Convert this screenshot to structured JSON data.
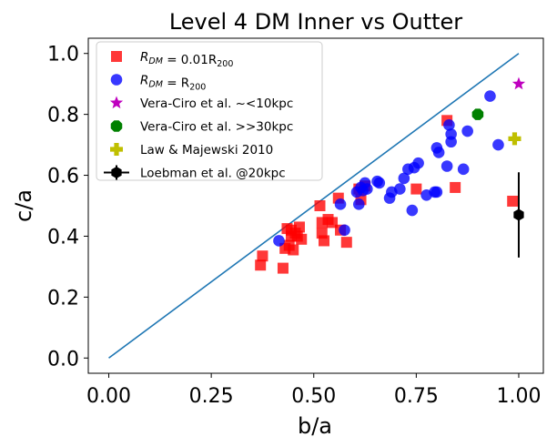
{
  "chart_data": {
    "type": "scatter",
    "title": "Level 4 DM Inner vs Outter",
    "xlabel": "b/a",
    "ylabel": "c/a",
    "xlim": [
      -0.05,
      1.06
    ],
    "ylim": [
      -0.05,
      1.05
    ],
    "xticks": [
      0.0,
      0.25,
      0.5,
      0.75,
      1.0
    ],
    "xtick_labels": [
      "0.00",
      "0.25",
      "0.50",
      "0.75",
      "1.00"
    ],
    "yticks": [
      0.0,
      0.2,
      0.4,
      0.6,
      0.8,
      1.0
    ],
    "ytick_labels": [
      "0.0",
      "0.2",
      "0.4",
      "0.6",
      "0.8",
      "1.0"
    ],
    "grid": false,
    "legend_position": "upper-left",
    "reference_line": {
      "x": [
        0.0,
        1.0
      ],
      "y": [
        0.0,
        1.0
      ],
      "color": "#1f77b4"
    },
    "series": [
      {
        "name": "R_DM = 0.01R_200",
        "legend_main": "R",
        "legend_sub1": "DM",
        "legend_mid": " = 0.01R",
        "legend_sub2": "200",
        "marker": "square",
        "color": "#ff0000",
        "x": [
          0.37,
          0.375,
          0.425,
          0.43,
          0.435,
          0.44,
          0.445,
          0.45,
          0.455,
          0.46,
          0.47,
          0.465,
          0.445,
          0.515,
          0.52,
          0.52,
          0.525,
          0.535,
          0.545,
          0.56,
          0.565,
          0.58,
          0.61,
          0.615,
          0.625,
          0.75,
          0.825,
          0.845,
          0.985
        ],
        "y": [
          0.305,
          0.335,
          0.295,
          0.36,
          0.425,
          0.37,
          0.4,
          0.355,
          0.41,
          0.4,
          0.39,
          0.43,
          0.42,
          0.5,
          0.445,
          0.41,
          0.385,
          0.455,
          0.445,
          0.525,
          0.42,
          0.38,
          0.555,
          0.52,
          0.565,
          0.555,
          0.78,
          0.56,
          0.515
        ]
      },
      {
        "name": "R_DM = R_200",
        "legend_main": "R",
        "legend_sub1": "DM",
        "legend_mid": " = R",
        "legend_sub2": "200",
        "marker": "circle",
        "color": "#0000ff",
        "x": [
          0.415,
          0.565,
          0.575,
          0.605,
          0.61,
          0.615,
          0.62,
          0.625,
          0.63,
          0.655,
          0.66,
          0.685,
          0.69,
          0.71,
          0.72,
          0.73,
          0.74,
          0.745,
          0.755,
          0.775,
          0.795,
          0.8,
          0.805,
          0.8,
          0.825,
          0.83,
          0.835,
          0.835,
          0.865,
          0.875,
          0.93,
          0.95
        ],
        "y": [
          0.385,
          0.505,
          0.42,
          0.545,
          0.505,
          0.56,
          0.55,
          0.575,
          0.555,
          0.58,
          0.575,
          0.525,
          0.545,
          0.555,
          0.59,
          0.62,
          0.485,
          0.625,
          0.64,
          0.535,
          0.545,
          0.69,
          0.675,
          0.545,
          0.63,
          0.765,
          0.735,
          0.71,
          0.62,
          0.745,
          0.86,
          0.7
        ]
      },
      {
        "name": "Vera-Ciro et al. ~<10kpc",
        "marker": "star",
        "color": "#bf00bf",
        "x": [
          1.0
        ],
        "y": [
          0.9
        ]
      },
      {
        "name": "Vera-Ciro et al. >>30kpc",
        "marker": "octagon",
        "color": "#008000",
        "x": [
          0.9
        ],
        "y": [
          0.8
        ]
      },
      {
        "name": "Law & Majewski 2010",
        "marker": "plus",
        "color": "#bfbf00",
        "x": [
          0.99
        ],
        "y": [
          0.72
        ]
      },
      {
        "name": "Loebman et al. @20kpc",
        "marker": "hexagon-errorbar",
        "color": "#000000",
        "x": [
          1.0
        ],
        "y": [
          0.47
        ],
        "yerr": [
          0.14
        ]
      }
    ]
  }
}
